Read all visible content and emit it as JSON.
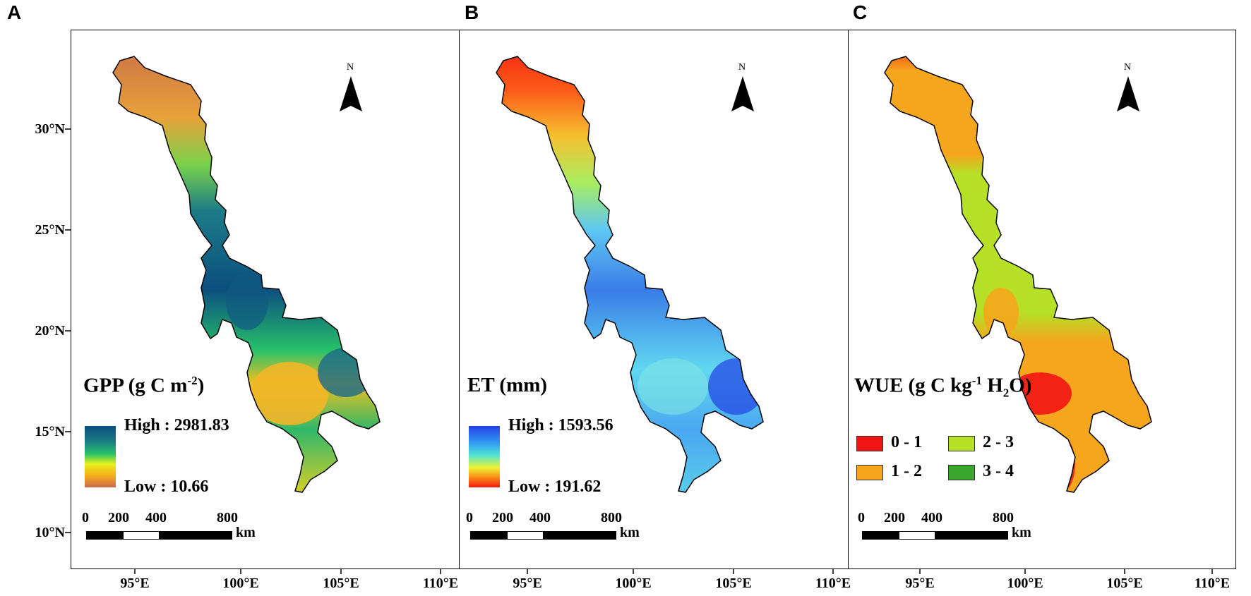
{
  "panels": [
    {
      "letter": "A",
      "legend_title_main": "GPP (g C m",
      "legend_title_sup": "-2",
      "legend_title_end": ")",
      "high_label": "High : 2981.83",
      "low_label": "Low : 10.66",
      "colors": [
        "#0b4f7f",
        "#1c7c86",
        "#27c16a",
        "#e6f21a",
        "#f7b01c",
        "#c86a48"
      ]
    },
    {
      "letter": "B",
      "legend_title": "ET (mm)",
      "high_label": "High : 1593.56",
      "low_label": "Low : 191.62",
      "colors": [
        "#2341e8",
        "#33a4f0",
        "#54e6d2",
        "#eef230",
        "#fb8a18",
        "#f31a0d"
      ]
    },
    {
      "letter": "C",
      "legend_title_a": "WUE (g C kg",
      "legend_title_sup": "-1",
      "legend_title_b": " H",
      "legend_title_sub": "2",
      "legend_title_c": "O)",
      "classes": [
        {
          "label": "0 - 1",
          "color": "#f21515"
        },
        {
          "label": "1 - 2",
          "color": "#f5a61d"
        },
        {
          "label": "2 - 3",
          "color": "#b5e025"
        },
        {
          "label": "3 - 4",
          "color": "#3aa62e"
        }
      ]
    }
  ],
  "latitude_labels": [
    "30°N",
    "25°N",
    "20°N",
    "15°N",
    "10°N"
  ],
  "longitude_labels": [
    "95°E",
    "100°E",
    "105°E",
    "110°E"
  ],
  "scale_bar": {
    "ticks": [
      "0",
      "200",
      "400",
      "800"
    ],
    "unit": "km"
  },
  "north_label": "N"
}
